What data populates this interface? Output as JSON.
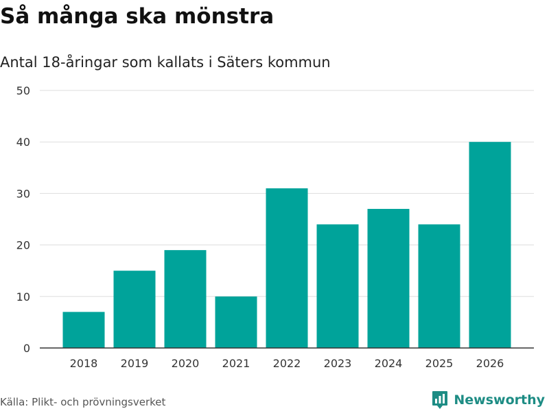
{
  "title": "Så många ska mönstra",
  "subtitle": "Antal 18-åringar som kallats i Säters kommun",
  "source": "Källa: Plikt- och prövningsverket",
  "brand": {
    "name": "Newsworthy",
    "icon": "newsworthy-logo-icon"
  },
  "colors": {
    "bar": "#00a39a",
    "grid": "#dddddd",
    "axis": "#333333",
    "brand": "#1d8c84"
  },
  "chart_data": {
    "type": "bar",
    "title": "Så många ska mönstra",
    "subtitle": "Antal 18-åringar som kallats i Säters kommun",
    "xlabel": "",
    "ylabel": "",
    "categories": [
      "2018",
      "2019",
      "2020",
      "2021",
      "2022",
      "2023",
      "2024",
      "2025",
      "2026"
    ],
    "values": [
      7,
      15,
      19,
      10,
      31,
      24,
      27,
      24,
      40
    ],
    "ylim": [
      0,
      50
    ],
    "yticks": [
      0,
      10,
      20,
      30,
      40,
      50
    ],
    "grid": true,
    "legend": "none"
  }
}
